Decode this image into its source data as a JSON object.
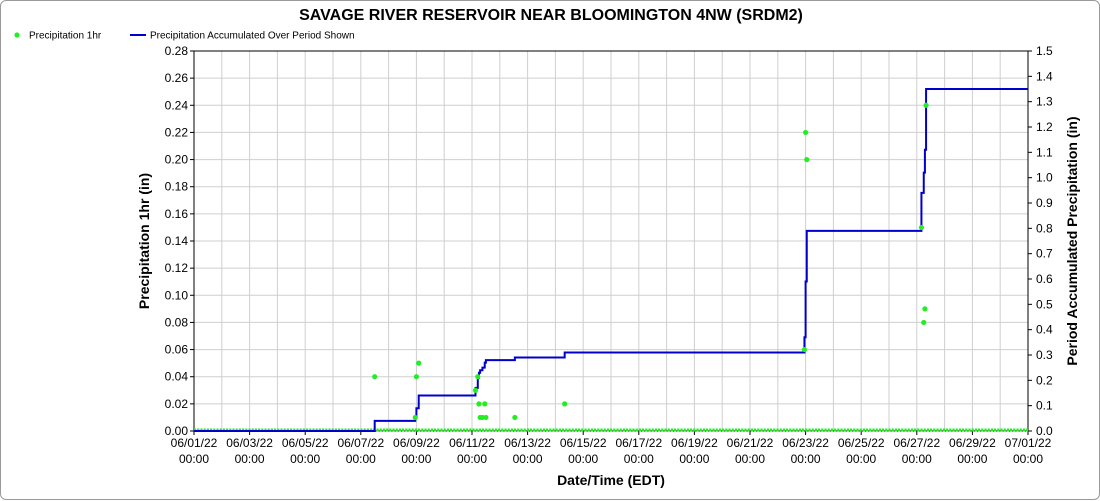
{
  "chart_data": {
    "type": "scatter",
    "title": "SAVAGE RIVER RESERVOIR NEAR BLOOMINGTON 4NW (SRDM2)",
    "xlabel": "Date/Time (EDT)",
    "ylabel": "Precipitation 1hr (in)",
    "y2label": "Period Accumulated Precipitation (in)",
    "ylim": [
      0,
      0.28
    ],
    "y2lim": [
      0,
      1.5
    ],
    "xlim": [
      "06/01/22 00:00",
      "07/01/22 00:00"
    ],
    "grid": true,
    "legend_position": "top-left",
    "x_ticks": [
      {
        "date": "06/01/22",
        "time": "00:00"
      },
      {
        "date": "06/03/22",
        "time": "00:00"
      },
      {
        "date": "06/05/22",
        "time": "00:00"
      },
      {
        "date": "06/07/22",
        "time": "00:00"
      },
      {
        "date": "06/09/22",
        "time": "00:00"
      },
      {
        "date": "06/11/22",
        "time": "00:00"
      },
      {
        "date": "06/13/22",
        "time": "00:00"
      },
      {
        "date": "06/15/22",
        "time": "00:00"
      },
      {
        "date": "06/17/22",
        "time": "00:00"
      },
      {
        "date": "06/19/22",
        "time": "00:00"
      },
      {
        "date": "06/21/22",
        "time": "00:00"
      },
      {
        "date": "06/23/22",
        "time": "00:00"
      },
      {
        "date": "06/25/22",
        "time": "00:00"
      },
      {
        "date": "06/27/22",
        "time": "00:00"
      },
      {
        "date": "06/29/22",
        "time": "00:00"
      },
      {
        "date": "07/01/22",
        "time": "00:00"
      }
    ],
    "y_ticks": [
      "0.00",
      "0.02",
      "0.04",
      "0.06",
      "0.08",
      "0.10",
      "0.12",
      "0.14",
      "0.16",
      "0.18",
      "0.20",
      "0.22",
      "0.24",
      "0.26",
      "0.28"
    ],
    "y2_ticks": [
      "0.0",
      "0.1",
      "0.2",
      "0.3",
      "0.4",
      "0.5",
      "0.6",
      "0.7",
      "0.8",
      "0.9",
      "1.0",
      "1.1",
      "1.2",
      "1.3",
      "1.4",
      "1.5"
    ],
    "series": [
      {
        "name": "Precipitation 1hr",
        "type": "scatter",
        "color": "#22ee22",
        "axis": "left",
        "points": [
          {
            "x": "06/07/22 12:00",
            "y": 0.04
          },
          {
            "x": "06/08/22 23:00",
            "y": 0.01
          },
          {
            "x": "06/09/22 00:00",
            "y": 0.04
          },
          {
            "x": "06/09/22 02:00",
            "y": 0.05
          },
          {
            "x": "06/11/22 03:00",
            "y": 0.03
          },
          {
            "x": "06/11/22 05:00",
            "y": 0.04
          },
          {
            "x": "06/11/22 06:00",
            "y": 0.02
          },
          {
            "x": "06/11/22 07:00",
            "y": 0.01
          },
          {
            "x": "06/11/22 09:00",
            "y": 0.01
          },
          {
            "x": "06/11/22 11:00",
            "y": 0.02
          },
          {
            "x": "06/11/22 12:00",
            "y": 0.01
          },
          {
            "x": "06/12/22 13:00",
            "y": 0.01
          },
          {
            "x": "06/14/22 08:00",
            "y": 0.02
          },
          {
            "x": "06/22/22 23:00",
            "y": 0.06
          },
          {
            "x": "06/23/22 00:00",
            "y": 0.22
          },
          {
            "x": "06/23/22 01:00",
            "y": 0.2
          },
          {
            "x": "06/27/22 04:00",
            "y": 0.15
          },
          {
            "x": "06/27/22 06:00",
            "y": 0.08
          },
          {
            "x": "06/27/22 07:00",
            "y": 0.09
          },
          {
            "x": "06/27/22 08:00",
            "y": 0.24
          }
        ]
      },
      {
        "name": "Precipitation Accumulated Over Period Shown",
        "type": "line",
        "line_shape": "step",
        "color": "#0000cc",
        "axis": "right",
        "points": [
          {
            "x": "06/01/22 00:00",
            "y": 0.0
          },
          {
            "x": "06/07/22 12:00",
            "y": 0.04
          },
          {
            "x": "06/08/22 23:00",
            "y": 0.05
          },
          {
            "x": "06/09/22 00:00",
            "y": 0.09
          },
          {
            "x": "06/09/22 02:00",
            "y": 0.14
          },
          {
            "x": "06/11/22 03:00",
            "y": 0.17
          },
          {
            "x": "06/11/22 05:00",
            "y": 0.21
          },
          {
            "x": "06/11/22 06:00",
            "y": 0.23
          },
          {
            "x": "06/11/22 07:00",
            "y": 0.24
          },
          {
            "x": "06/11/22 09:00",
            "y": 0.25
          },
          {
            "x": "06/11/22 11:00",
            "y": 0.27
          },
          {
            "x": "06/11/22 12:00",
            "y": 0.28
          },
          {
            "x": "06/12/22 13:00",
            "y": 0.29
          },
          {
            "x": "06/14/22 08:00",
            "y": 0.31
          },
          {
            "x": "06/22/22 23:00",
            "y": 0.37
          },
          {
            "x": "06/23/22 00:00",
            "y": 0.59
          },
          {
            "x": "06/23/22 01:00",
            "y": 0.79
          },
          {
            "x": "06/27/22 04:00",
            "y": 0.94
          },
          {
            "x": "06/27/22 06:00",
            "y": 1.02
          },
          {
            "x": "06/27/22 07:00",
            "y": 1.11
          },
          {
            "x": "06/27/22 08:00",
            "y": 1.35
          },
          {
            "x": "07/01/22 00:00",
            "y": 1.35
          }
        ]
      }
    ]
  }
}
